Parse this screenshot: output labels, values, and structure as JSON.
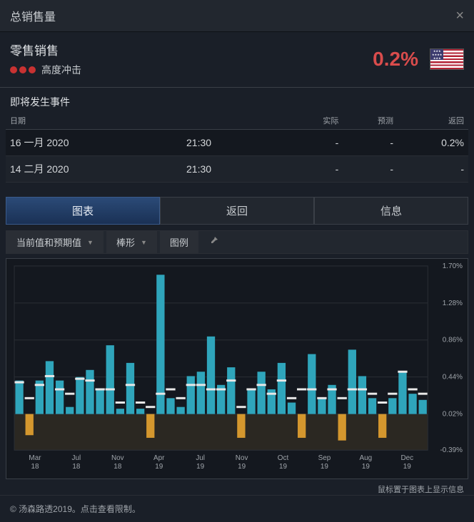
{
  "titlebar": {
    "title": "总销售量"
  },
  "summary": {
    "title": "零售销售",
    "impact_label": "高度冲击",
    "impact_color": "#c83232",
    "impact_dots": 3,
    "value": "0.2%",
    "value_color": "#d94c4c"
  },
  "upcoming": {
    "header": "即将发生事件",
    "columns": [
      "日期",
      "",
      "实际",
      "预测",
      "返回"
    ],
    "rows": [
      {
        "date": "16 一月 2020",
        "time": "21:30",
        "actual": "-",
        "forecast": "-",
        "previous": "0.2%"
      },
      {
        "date": "14 二月 2020",
        "time": "21:30",
        "actual": "-",
        "forecast": "-",
        "previous": "-"
      }
    ]
  },
  "tabs": {
    "items": [
      "图表",
      "返回",
      "信息"
    ],
    "active_index": 0
  },
  "toolbar": {
    "series_selector": "当前值和预期值",
    "chart_type": "棒形",
    "legend": "图例"
  },
  "chart": {
    "type": "bar",
    "background_color": "#14181f",
    "negative_zone_color": "#3a3424",
    "grid_color": "#2a2e35",
    "axis_text_color": "#9fa4aa",
    "bar_color": "#2fa5bb",
    "neg_bar_color": "#d4972e",
    "marker_color": "#e8e8e8",
    "y_label_fontsize": 10,
    "x_label_fontsize": 10,
    "ylim": [
      -0.39,
      1.7
    ],
    "yticks": [
      -0.39,
      0.02,
      0.44,
      0.86,
      1.28,
      1.7
    ],
    "ytick_labels": [
      "-0.39%",
      "0.02%",
      "0.44%",
      "0.86%",
      "1.28%",
      "1.70%"
    ],
    "xticks": [
      {
        "line1": "Mar",
        "line2": "18"
      },
      {
        "line1": "Jul",
        "line2": "18"
      },
      {
        "line1": "Nov",
        "line2": "18"
      },
      {
        "line1": "Apr",
        "line2": "19"
      },
      {
        "line1": "Jul",
        "line2": "19"
      },
      {
        "line1": "Nov",
        "line2": "19"
      },
      {
        "line1": "Oct",
        "line2": "19"
      },
      {
        "line1": "Sep",
        "line2": "19"
      },
      {
        "line1": "Aug",
        "line2": "19"
      },
      {
        "line1": "Dec",
        "line2": "19"
      }
    ],
    "bar_width": 0.8,
    "values": [
      0.4,
      -0.22,
      0.4,
      0.62,
      0.4,
      0.1,
      0.44,
      0.52,
      0.3,
      0.8,
      0.08,
      0.6,
      0.08,
      -0.25,
      1.6,
      0.2,
      0.1,
      0.45,
      0.5,
      0.9,
      0.35,
      0.55,
      -0.25,
      0.3,
      0.5,
      0.3,
      0.6,
      0.15,
      -0.25,
      0.7,
      0.2,
      0.35,
      -0.28,
      0.75,
      0.45,
      0.2,
      -0.25,
      0.2,
      0.5,
      0.25,
      0.18
    ],
    "markers": [
      0.38,
      0.2,
      0.35,
      0.45,
      0.3,
      0.25,
      0.42,
      0.4,
      0.3,
      0.3,
      0.15,
      0.35,
      0.15,
      0.1,
      0.25,
      0.3,
      0.2,
      0.35,
      0.35,
      0.3,
      0.3,
      0.4,
      0.1,
      0.3,
      0.35,
      0.25,
      0.4,
      0.2,
      0.3,
      0.3,
      0.2,
      0.3,
      0.2,
      0.3,
      0.3,
      0.25,
      0.15,
      0.25,
      0.5,
      0.3,
      0.25
    ]
  },
  "hint": "鼠标置于图表上显示信息",
  "footer": "© 汤森路透2019。点击查看限制。"
}
